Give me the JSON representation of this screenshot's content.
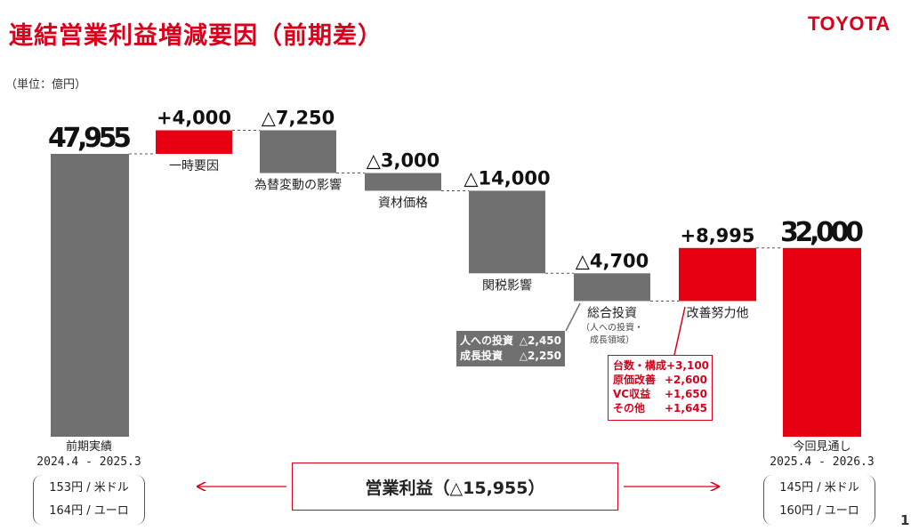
{
  "header": {
    "title": "連結営業利益増減要因（前期差）",
    "logo_text": "TOYOTA",
    "unit": "（単位：億円）"
  },
  "chart_data": {
    "type": "bar",
    "subtype": "waterfall",
    "ylim": [
      0,
      50000
    ],
    "grid": false,
    "colors": {
      "base": "#707070",
      "increase": "#e60012",
      "decrease": "#707070",
      "result": "#e60012"
    },
    "items": [
      {
        "label": "",
        "value": 47955,
        "value_label": "47,955",
        "kind": "base"
      },
      {
        "label": "一時要因",
        "value": 4000,
        "value_label": "+4,000",
        "kind": "delta"
      },
      {
        "label": "為替変動の影響",
        "value": -7250,
        "value_label": "△7,250",
        "kind": "delta"
      },
      {
        "label": "資材価格",
        "value": -3000,
        "value_label": "△3,000",
        "kind": "delta"
      },
      {
        "label": "関税影響",
        "value": -14000,
        "value_label": "△14,000",
        "kind": "delta"
      },
      {
        "label": "総合投資",
        "sublabel": [
          "（人への投資・",
          "成長領域）"
        ],
        "value": -4700,
        "value_label": "△4,700",
        "kind": "delta"
      },
      {
        "label": "改善努力他",
        "value": 8995,
        "value_label": "+8,995",
        "kind": "delta"
      },
      {
        "label": "",
        "value": 32000,
        "value_label": "32,000",
        "kind": "result"
      }
    ]
  },
  "investment_breakdown": [
    {
      "label": "人への投資",
      "value": "△2,450"
    },
    {
      "label": "成長投資",
      "value": "△2,250"
    }
  ],
  "kaizen_breakdown": [
    {
      "label": "台数・構成",
      "value": "+3,100"
    },
    {
      "label": "原価改善",
      "value": "+2,600"
    },
    {
      "label": "VC収益",
      "value": "+1,650"
    },
    {
      "label": "その他",
      "value": "+1,645"
    }
  ],
  "previous_period": {
    "label": "前期実績",
    "range": "2024.4 - 2025.3",
    "usd": "153円 / 米ドル",
    "eur": "164円 / ユーロ"
  },
  "current_forecast": {
    "label": "今回見通し",
    "range": "2025.4 - 2026.3",
    "usd": "145円 / 米ドル",
    "eur": "160円 / ユーロ"
  },
  "summary": "営業利益（△15,955）",
  "page_number": "1"
}
